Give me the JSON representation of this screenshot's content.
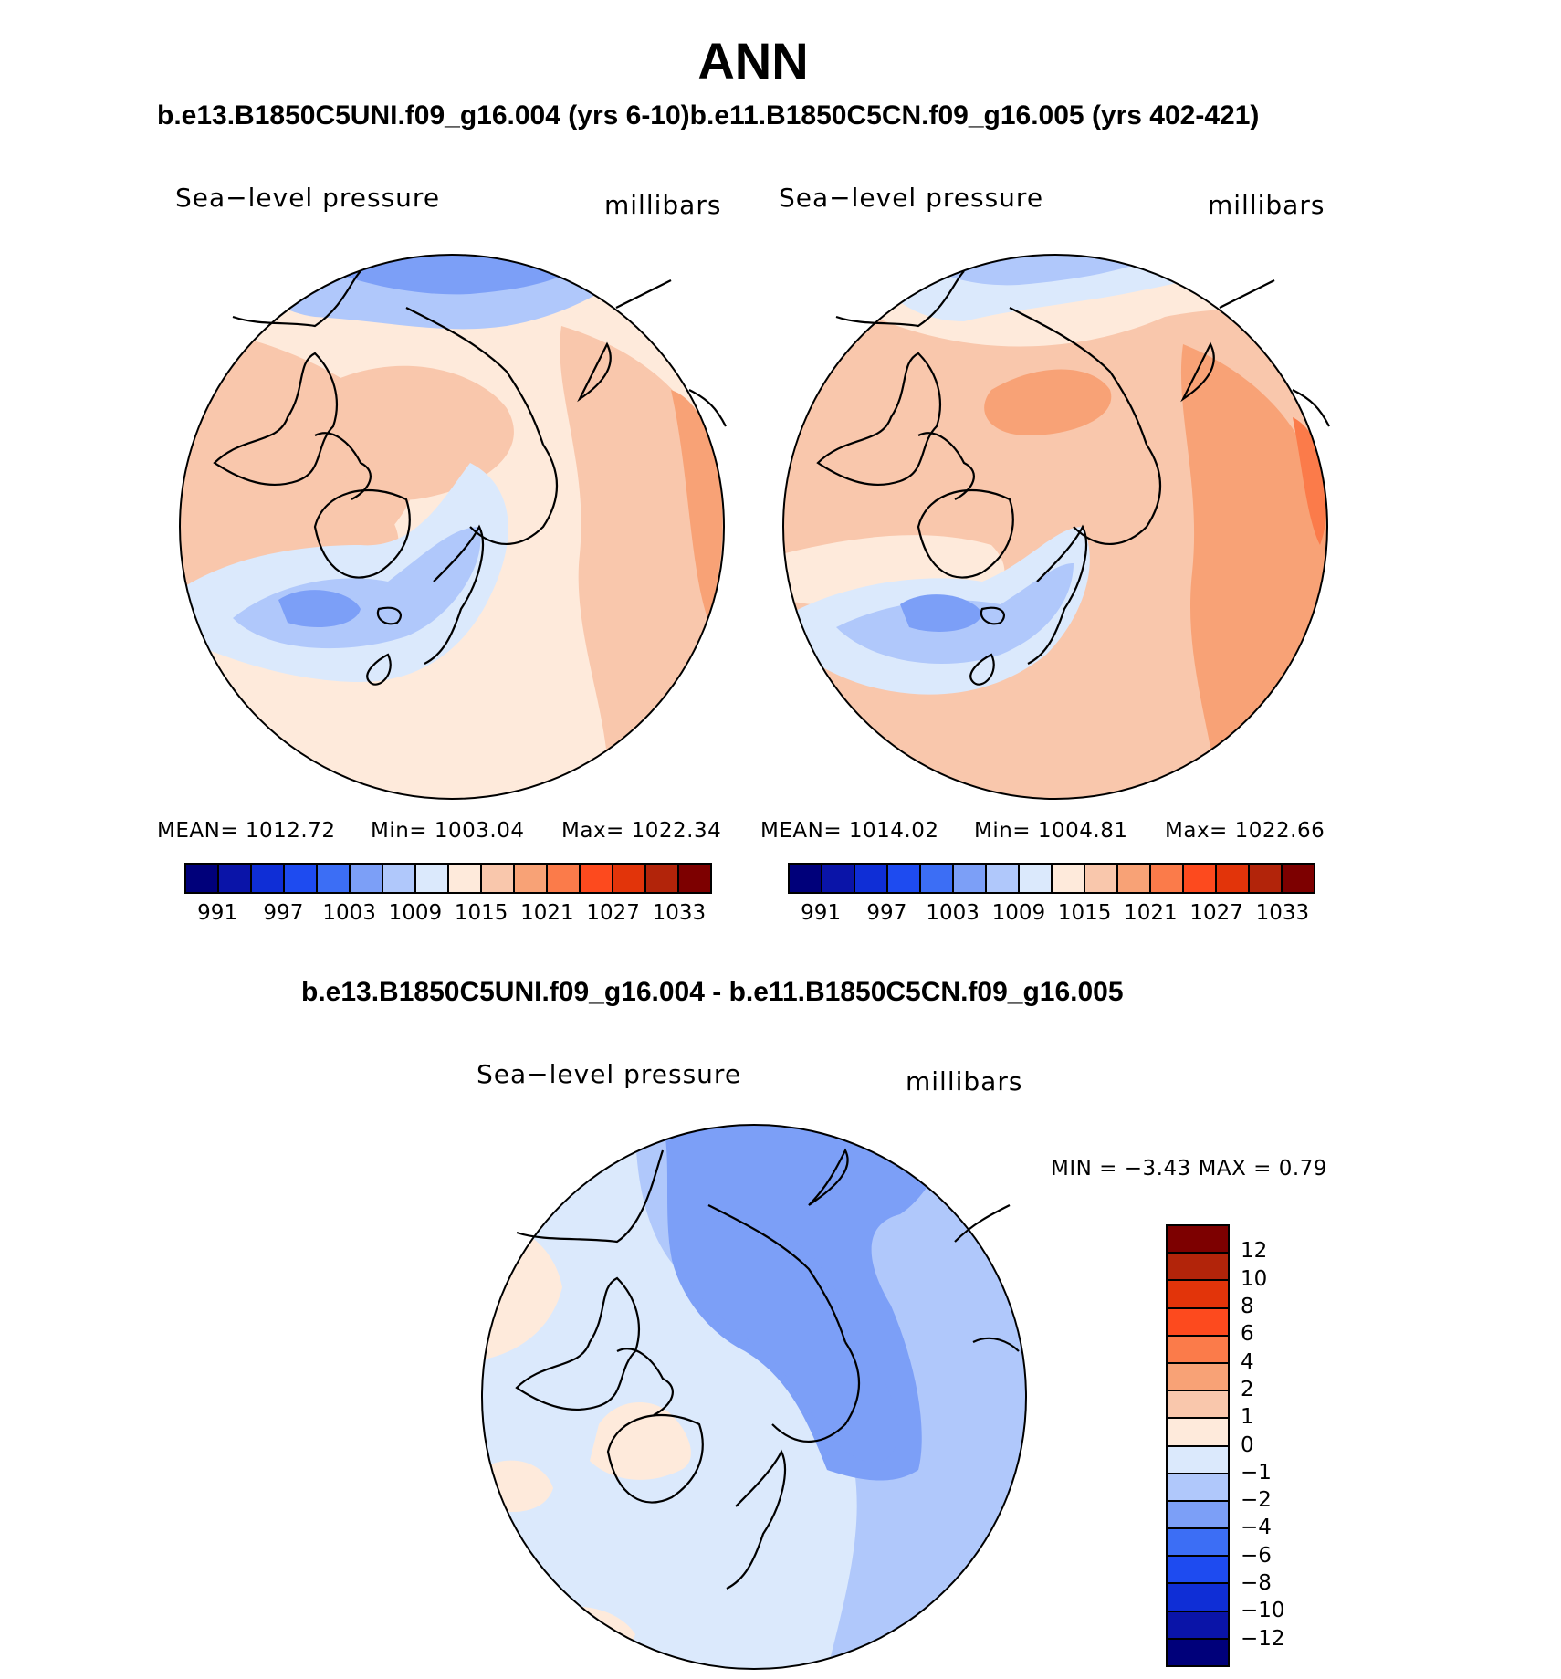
{
  "figure": {
    "season": "ANN",
    "run_pair_title": "b.e13.B1850C5UNI.f09_g16.004 (yrs 6-10)b.e11.B1850C5CN.f09_g16.005 (yrs 402-421)",
    "diff_title": "b.e13.B1850C5UNI.f09_g16.004 - b.e11.B1850C5CN.f09_g16.005"
  },
  "panels": [
    {
      "variable": "Sea−level pressure",
      "units": "millibars",
      "mean_label": "MEAN= 1012.72",
      "min_label": "Min= 1003.04",
      "max_label": "Max= 1022.34"
    },
    {
      "variable": "Sea−level pressure",
      "units": "millibars",
      "mean_label": "MEAN= 1014.02",
      "min_label": "Min= 1004.81",
      "max_label": "Max= 1022.66"
    },
    {
      "variable": "Sea−level pressure",
      "units": "millibars",
      "minmax_label": "MIN =   −3.43 MAX =    0.79"
    }
  ],
  "legend_abs": {
    "tick_labels": [
      "991",
      "997",
      "1003",
      "1009",
      "1015",
      "1021",
      "1027",
      "1033"
    ],
    "colors": [
      "#00007a",
      "#0a14a8",
      "#0f2ed6",
      "#1e4bf0",
      "#3c6ef5",
      "#7c9ff7",
      "#b0c8fb",
      "#dbe9fc",
      "#feeadb",
      "#f9c7ac",
      "#f8a276",
      "#fb7b4a",
      "#fd4a1e",
      "#e2340a",
      "#b2240a",
      "#7d0000"
    ]
  },
  "legend_diff": {
    "tick_labels": [
      "12",
      "10",
      "8",
      "6",
      "4",
      "2",
      "1",
      "0",
      "−1",
      "−2",
      "−4",
      "−6",
      "−8",
      "−10",
      "−12"
    ],
    "colors": [
      "#7d0000",
      "#b2240a",
      "#e2340a",
      "#fd4a1e",
      "#fb7b4a",
      "#f8a276",
      "#f9c7ac",
      "#feeadb",
      "#dbe9fc",
      "#b0c8fb",
      "#7c9ff7",
      "#3c6ef5",
      "#1e4bf0",
      "#0f2ed6",
      "#0a14a8",
      "#00007a"
    ]
  },
  "fill_colors": {
    "cool1": "#dbe9fc",
    "cool2": "#b0c8fb",
    "cool3": "#7c9ff7",
    "cool4": "#3c6ef5",
    "warm1": "#feeadb",
    "warm2": "#f9c7ac",
    "warm3": "#f8a276",
    "warm4": "#fb7b4a",
    "warm5": "#fd4a1e"
  }
}
